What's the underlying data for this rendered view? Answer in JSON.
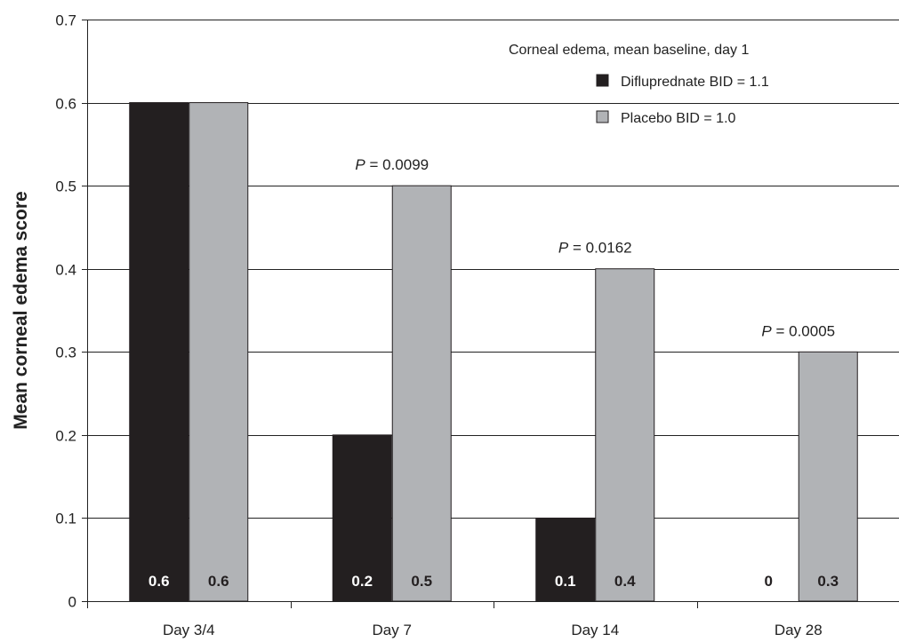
{
  "chart_data": {
    "type": "bar",
    "categories": [
      "Day 3/4",
      "Day 7",
      "Day 14",
      "Day 28"
    ],
    "series": [
      {
        "name": "Difluprednate BID = 1.1",
        "color": "#231f20",
        "label_color": "#ffffff",
        "values": [
          0.6,
          0.2,
          0.1,
          0
        ],
        "value_labels": [
          "0.6",
          "0.2",
          "0.1",
          "0"
        ]
      },
      {
        "name": "Placebo BID = 1.0",
        "color": "#b1b3b6",
        "label_color": "#231f20",
        "values": [
          0.6,
          0.5,
          0.4,
          0.3
        ],
        "value_labels": [
          "0.6",
          "0.5",
          "0.4",
          "0.3"
        ]
      }
    ],
    "ylabel": "Mean corneal edema score",
    "xlabel": "",
    "ylim": [
      0,
      0.7
    ],
    "yticks": [
      0,
      0.1,
      0.2,
      0.3,
      0.4,
      0.5,
      0.6,
      0.7
    ],
    "ytick_labels": [
      "0",
      "0.1",
      "0.2",
      "0.3",
      "0.4",
      "0.5",
      "0.6",
      "0.7"
    ],
    "grid": true,
    "legend": {
      "title": "Corneal edema, mean baseline, day 1",
      "placement": "top-right"
    },
    "annotations": [
      {
        "category": "Day 7",
        "y": 0.5,
        "prefix": "P",
        "text": " = 0.0099"
      },
      {
        "category": "Day 14",
        "y": 0.4,
        "prefix": "P",
        "text": " = 0.0162"
      },
      {
        "category": "Day 28",
        "y": 0.3,
        "prefix": "P",
        "text": " = 0.0005"
      }
    ]
  }
}
